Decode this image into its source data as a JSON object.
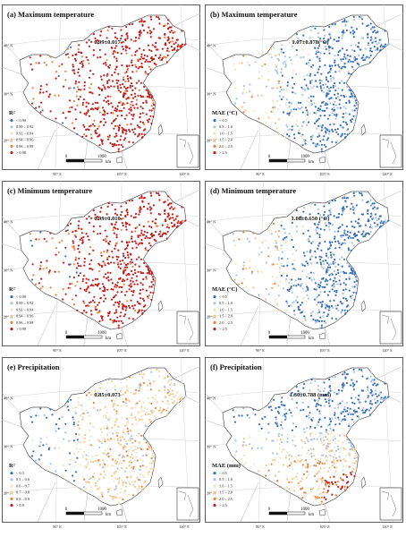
{
  "panels": [
    {
      "title": "(a) Maximum temperature",
      "stat": "0.99±0.017",
      "legend_title": "R²",
      "legend": [
        {
          "label": "< 0.90",
          "color": "#3b6fb6"
        },
        {
          "label": "0.90 – 0.92",
          "color": "#a9c4e2"
        },
        {
          "label": "0.92 – 0.94",
          "color": "#ece6c8"
        },
        {
          "label": "0.94 – 0.96",
          "color": "#f6c48a"
        },
        {
          "label": "0.96 – 0.98",
          "color": "#e98444"
        },
        {
          "label": "> 0.98",
          "color": "#c21d1d"
        }
      ]
    },
    {
      "title": "(b) Maximum temperature",
      "stat": "1.07±0.878(°C)",
      "legend_title": "MAE (°C)",
      "legend": [
        {
          "label": "< 0.5",
          "color": "#3b6fb6"
        },
        {
          "label": "0.5 – 1.0",
          "color": "#a9c4e2"
        },
        {
          "label": "1.0 – 1.5",
          "color": "#ece6c8"
        },
        {
          "label": "1.5 – 2.0",
          "color": "#f6c48a"
        },
        {
          "label": "2.0 – 2.5",
          "color": "#e98444"
        },
        {
          "label": "> 2.5",
          "color": "#c21d1d"
        }
      ]
    },
    {
      "title": "(c) Minimum temperature",
      "stat": "0.99±0.010",
      "legend_title": "R²",
      "legend": [
        {
          "label": "< 0.90",
          "color": "#3b6fb6"
        },
        {
          "label": "0.90 – 0.92",
          "color": "#a9c4e2"
        },
        {
          "label": "0.92 – 0.94",
          "color": "#ece6c8"
        },
        {
          "label": "0.94 – 0.96",
          "color": "#f6c48a"
        },
        {
          "label": "0.96 – 0.98",
          "color": "#e98444"
        },
        {
          "label": "> 0.98",
          "color": "#c21d1d"
        }
      ]
    },
    {
      "title": "(d) Minimum temperature",
      "stat": "1.08±0.650 (°C)",
      "legend_title": "MAE (°C)",
      "legend": [
        {
          "label": "< 0.5",
          "color": "#3b6fb6"
        },
        {
          "label": "0.5 – 1.0",
          "color": "#a9c4e2"
        },
        {
          "label": "1.0 – 1.5",
          "color": "#ece6c8"
        },
        {
          "label": "1.5 – 2.0",
          "color": "#f6c48a"
        },
        {
          "label": "2.0 – 2.5",
          "color": "#e98444"
        },
        {
          "label": "> 2.5",
          "color": "#c21d1d"
        }
      ]
    },
    {
      "title": "(e) Precipitation",
      "stat": "0.85±0.073",
      "legend_title": "R²",
      "legend": [
        {
          "label": "< 0.5",
          "color": "#3b6fb6"
        },
        {
          "label": "0.5 – 0.6",
          "color": "#a9c4e2"
        },
        {
          "label": "0.6 – 0.7",
          "color": "#ece6c8"
        },
        {
          "label": "0.7 – 0.8",
          "color": "#f6c48a"
        },
        {
          "label": "0.8 – 0.9",
          "color": "#e98444"
        },
        {
          "label": "> 0.9",
          "color": "#c21d1d"
        }
      ]
    },
    {
      "title": "(f) Precipitation",
      "stat": "1.30±0.788 (mm)",
      "legend_title": "MAE (mm)",
      "legend": [
        {
          "label": "< 0.5",
          "color": "#3b6fb6"
        },
        {
          "label": "0.5 – 1.0",
          "color": "#a9c4e2"
        },
        {
          "label": "1.0 – 1.5",
          "color": "#ece6c8"
        },
        {
          "label": "1.5 – 2.0",
          "color": "#f6c48a"
        },
        {
          "label": "2.0 – 2.5",
          "color": "#e98444"
        },
        {
          "label": "> 2.5",
          "color": "#c21d1d"
        }
      ]
    }
  ],
  "axes": {
    "lat_labels": [
      "40° N",
      "30° N",
      "20° N"
    ],
    "lon_labels": [
      "90° E",
      "105° E",
      "120° E"
    ]
  },
  "scale_bar": {
    "start": "0",
    "end": "1000",
    "unit": "km"
  }
}
